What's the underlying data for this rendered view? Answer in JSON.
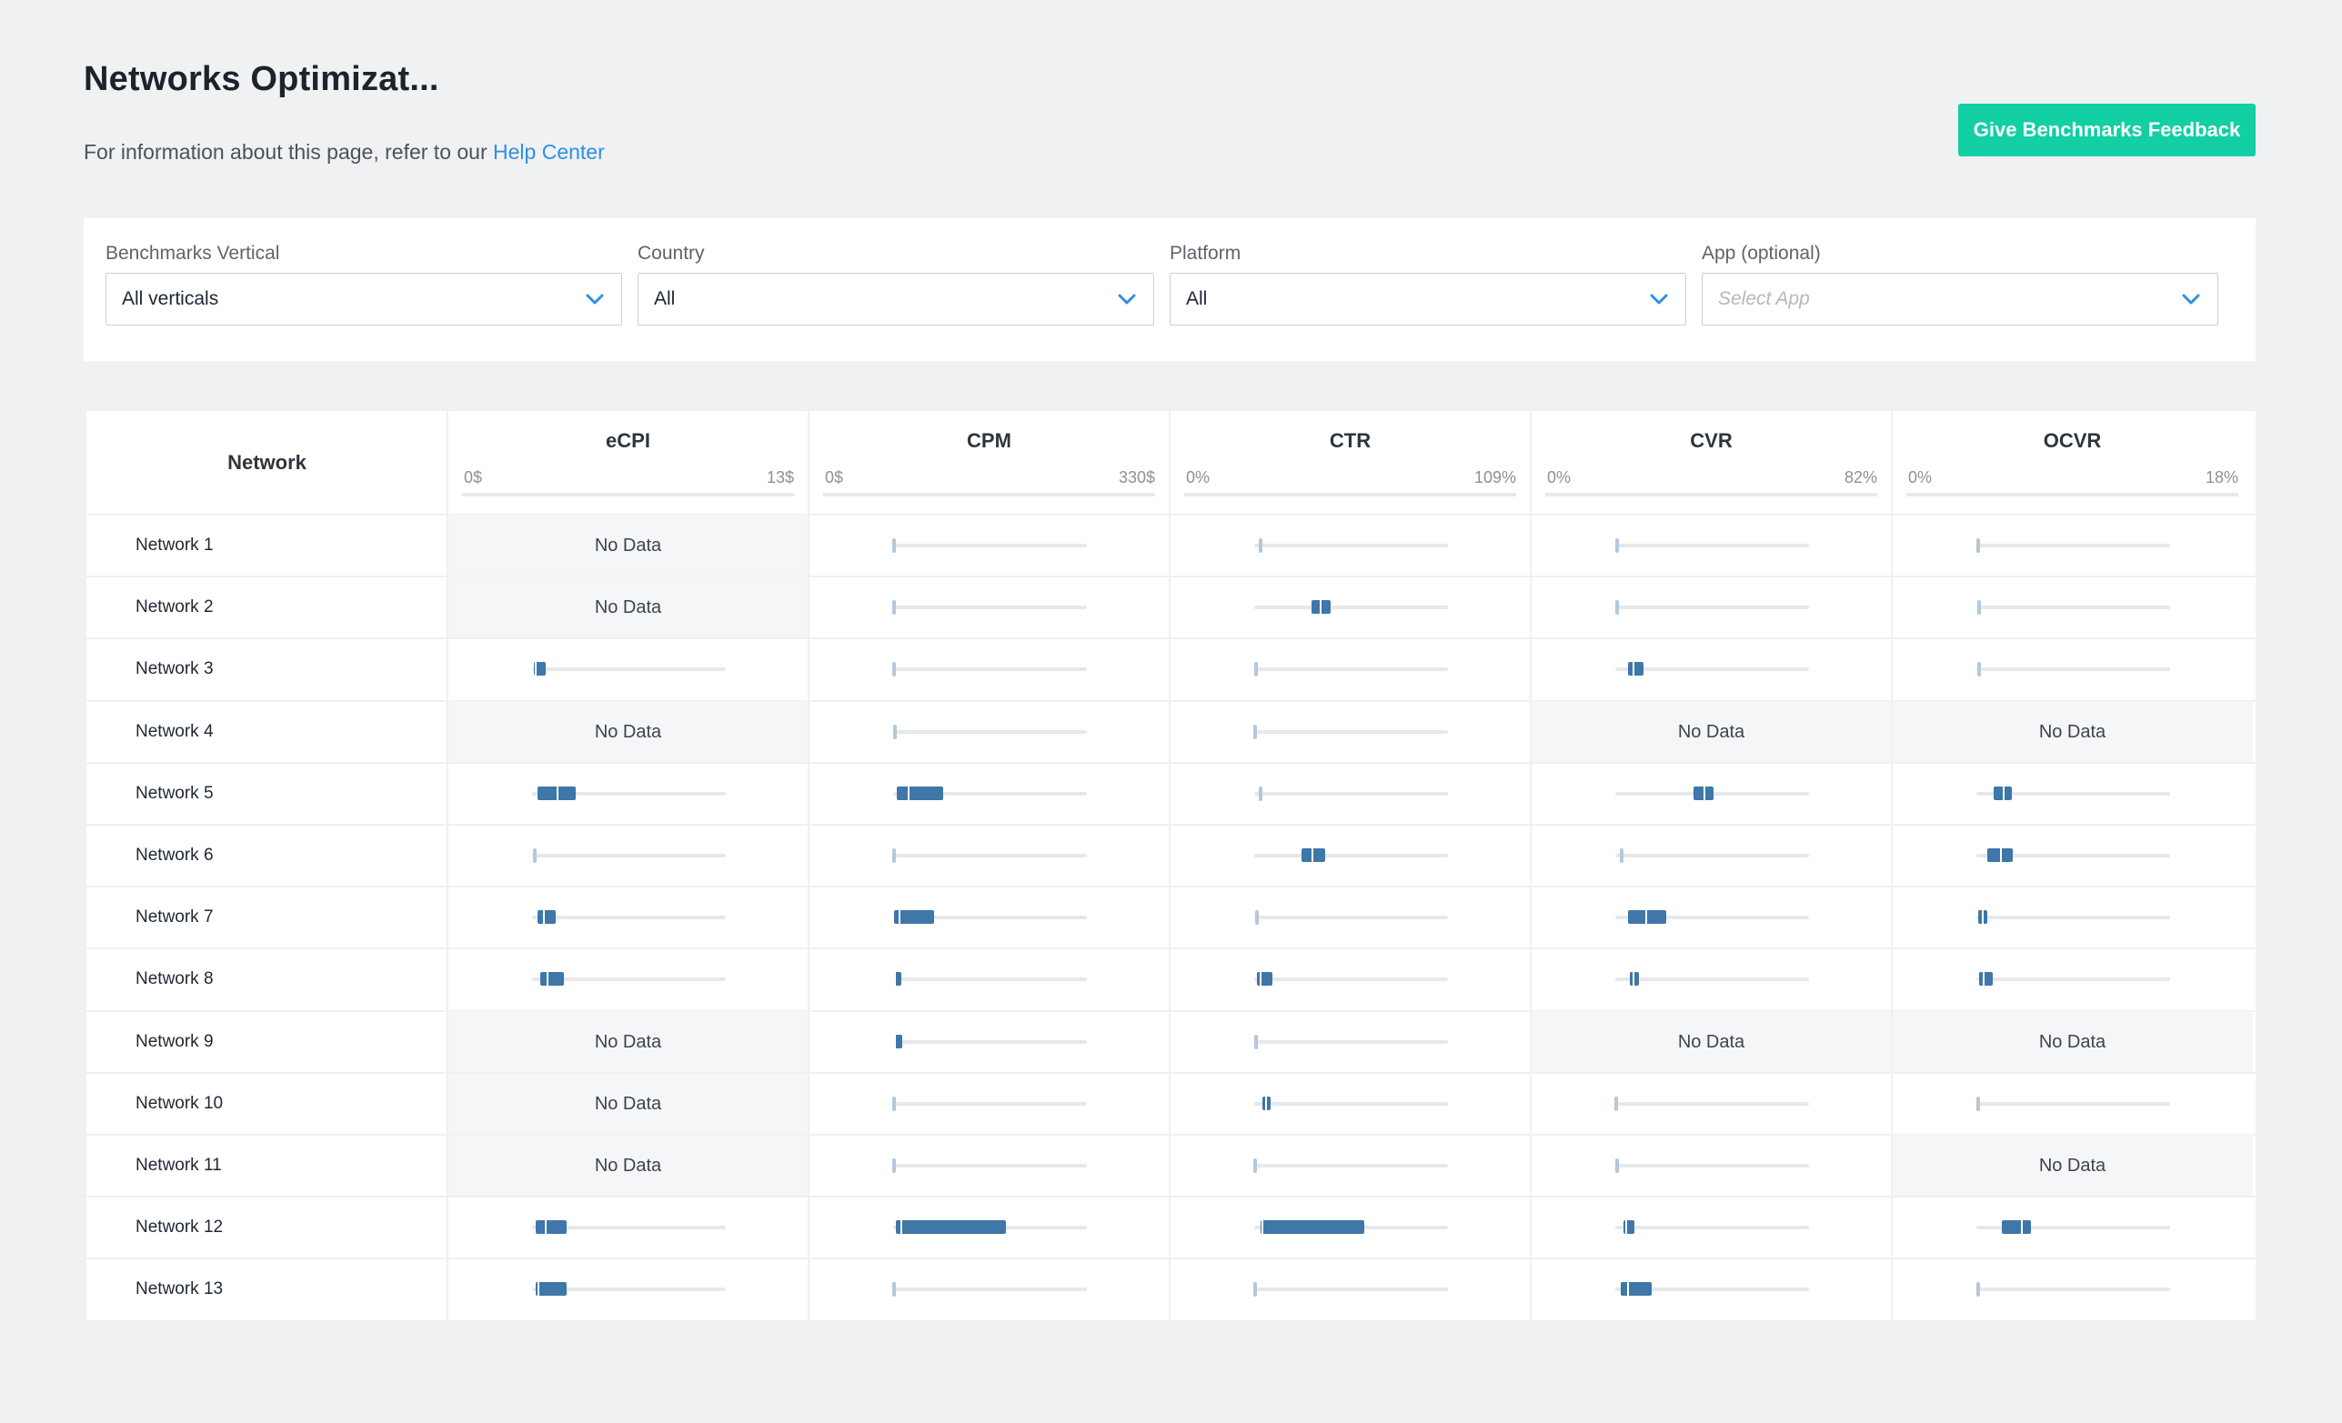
{
  "page": {
    "title": "Networks Optimizat...",
    "subtitle_text": "For information about this page, refer to our ",
    "help_link": "Help Center",
    "feedback_button": "Give Benchmarks Feedback"
  },
  "filters": [
    {
      "label": "Benchmarks Vertical",
      "value": "All verticals",
      "placeholder": false
    },
    {
      "label": "Country",
      "value": "All",
      "placeholder": false
    },
    {
      "label": "Platform",
      "value": "All",
      "placeholder": false
    },
    {
      "label": "App (optional)",
      "value": "Select App",
      "placeholder": true
    }
  ],
  "table": {
    "network_header": "Network",
    "no_data_label": "No Data",
    "columns": [
      {
        "name": "eCPI",
        "min_label": "0$",
        "max_label": "13$",
        "max": 13
      },
      {
        "name": "CPM",
        "min_label": "0$",
        "max_label": "330$",
        "max": 330
      },
      {
        "name": "CTR",
        "min_label": "0%",
        "max_label": "109%",
        "max": 109
      },
      {
        "name": "CVR",
        "min_label": "0%",
        "max_label": "82%",
        "max": 82
      },
      {
        "name": "OCVR",
        "min_label": "0%",
        "max_label": "18%",
        "max": 18
      }
    ],
    "rows": [
      {
        "network": "Network 1",
        "metrics": [
          null,
          [
            0.6,
            0.6,
            0.7
          ],
          [
            3.2,
            4.1,
            5.4
          ],
          [
            0.2,
            0.2,
            0.3
          ],
          [
            0.1,
            0.1,
            0.12
          ]
        ]
      },
      {
        "network": "Network 2",
        "metrics": [
          null,
          [
            0.1,
            0.1,
            0.2
          ],
          [
            32.0,
            37.5,
            43.0
          ],
          [
            0.2,
            0.2,
            0.3
          ],
          [
            0.2,
            0.22,
            0.35
          ]
        ]
      },
      {
        "network": "Network 3",
        "metrics": [
          [
            0.1,
            0.25,
            0.9
          ],
          [
            0.1,
            0.1,
            0.2
          ],
          [
            0.5,
            0.6,
            0.9
          ],
          [
            5.5,
            7.6,
            12.0
          ],
          [
            0.2,
            0.25,
            0.35
          ]
        ]
      },
      {
        "network": "Network 4",
        "metrics": [
          null,
          [
            0.8,
            1.2,
            2.0
          ],
          [
            0.1,
            0.1,
            0.2
          ],
          null,
          null
        ]
      },
      {
        "network": "Network 5",
        "metrics": [
          [
            0.35,
            1.7,
            2.95
          ],
          [
            5.5,
            26.0,
            85.0
          ],
          [
            3.0,
            3.6,
            4.4
          ],
          [
            33.0,
            37.6,
            41.5
          ],
          [
            1.6,
            2.5,
            3.3
          ]
        ]
      },
      {
        "network": "Network 6",
        "metrics": [
          [
            0.1,
            0.1,
            0.12
          ],
          [
            0.3,
            0.4,
            0.6
          ],
          [
            26.5,
            32.5,
            40.0
          ],
          [
            2.5,
            3.0,
            4.0
          ],
          [
            1.0,
            2.3,
            3.4
          ]
        ]
      },
      {
        "network": "Network 7",
        "metrics": [
          [
            0.35,
            0.8,
            1.6
          ],
          [
            2.2,
            11.5,
            70.0
          ],
          [
            0.9,
            1.2,
            2.3
          ],
          [
            5.5,
            13.0,
            21.5
          ],
          [
            0.2,
            0.6,
            1.0
          ]
        ]
      },
      {
        "network": "Network 8",
        "metrics": [
          [
            0.55,
            1.05,
            2.15
          ],
          [
            0.8,
            2.8,
            14.0
          ],
          [
            1.6,
            3.8,
            10.0
          ],
          [
            6.0,
            7.8,
            10.0
          ],
          [
            0.25,
            0.65,
            1.5
          ]
        ]
      },
      {
        "network": "Network 9",
        "metrics": [
          null,
          [
            1.5,
            3.8,
            15.5
          ],
          [
            0.5,
            0.6,
            0.9
          ],
          null,
          null
        ]
      },
      {
        "network": "Network 10",
        "metrics": [
          null,
          [
            0.2,
            0.3,
            0.4
          ],
          [
            4.5,
            6.5,
            9.0
          ],
          [
            0.1,
            0.1,
            0.2
          ],
          [
            0.1,
            0.15,
            0.22
          ]
        ]
      },
      {
        "network": "Network 11",
        "metrics": [
          null,
          [
            0.1,
            0.1,
            0.2
          ],
          [
            0.1,
            0.1,
            0.2
          ],
          [
            0.2,
            0.3,
            0.5
          ],
          null
        ]
      },
      {
        "network": "Network 12",
        "metrics": [
          [
            0.25,
            0.9,
            2.3
          ],
          [
            4.5,
            14.5,
            192.0
          ],
          [
            3.5,
            4.4,
            62.0
          ],
          [
            3.3,
            4.5,
            8.0
          ],
          [
            2.4,
            4.2,
            5.1
          ]
        ]
      },
      {
        "network": "Network 13",
        "metrics": [
          [
            0.25,
            0.4,
            2.3
          ],
          [
            0.3,
            0.4,
            0.6
          ],
          [
            0.1,
            0.1,
            0.2
          ],
          [
            2.2,
            5.5,
            15.5
          ],
          [
            0.1,
            0.1,
            0.12
          ]
        ]
      }
    ]
  }
}
